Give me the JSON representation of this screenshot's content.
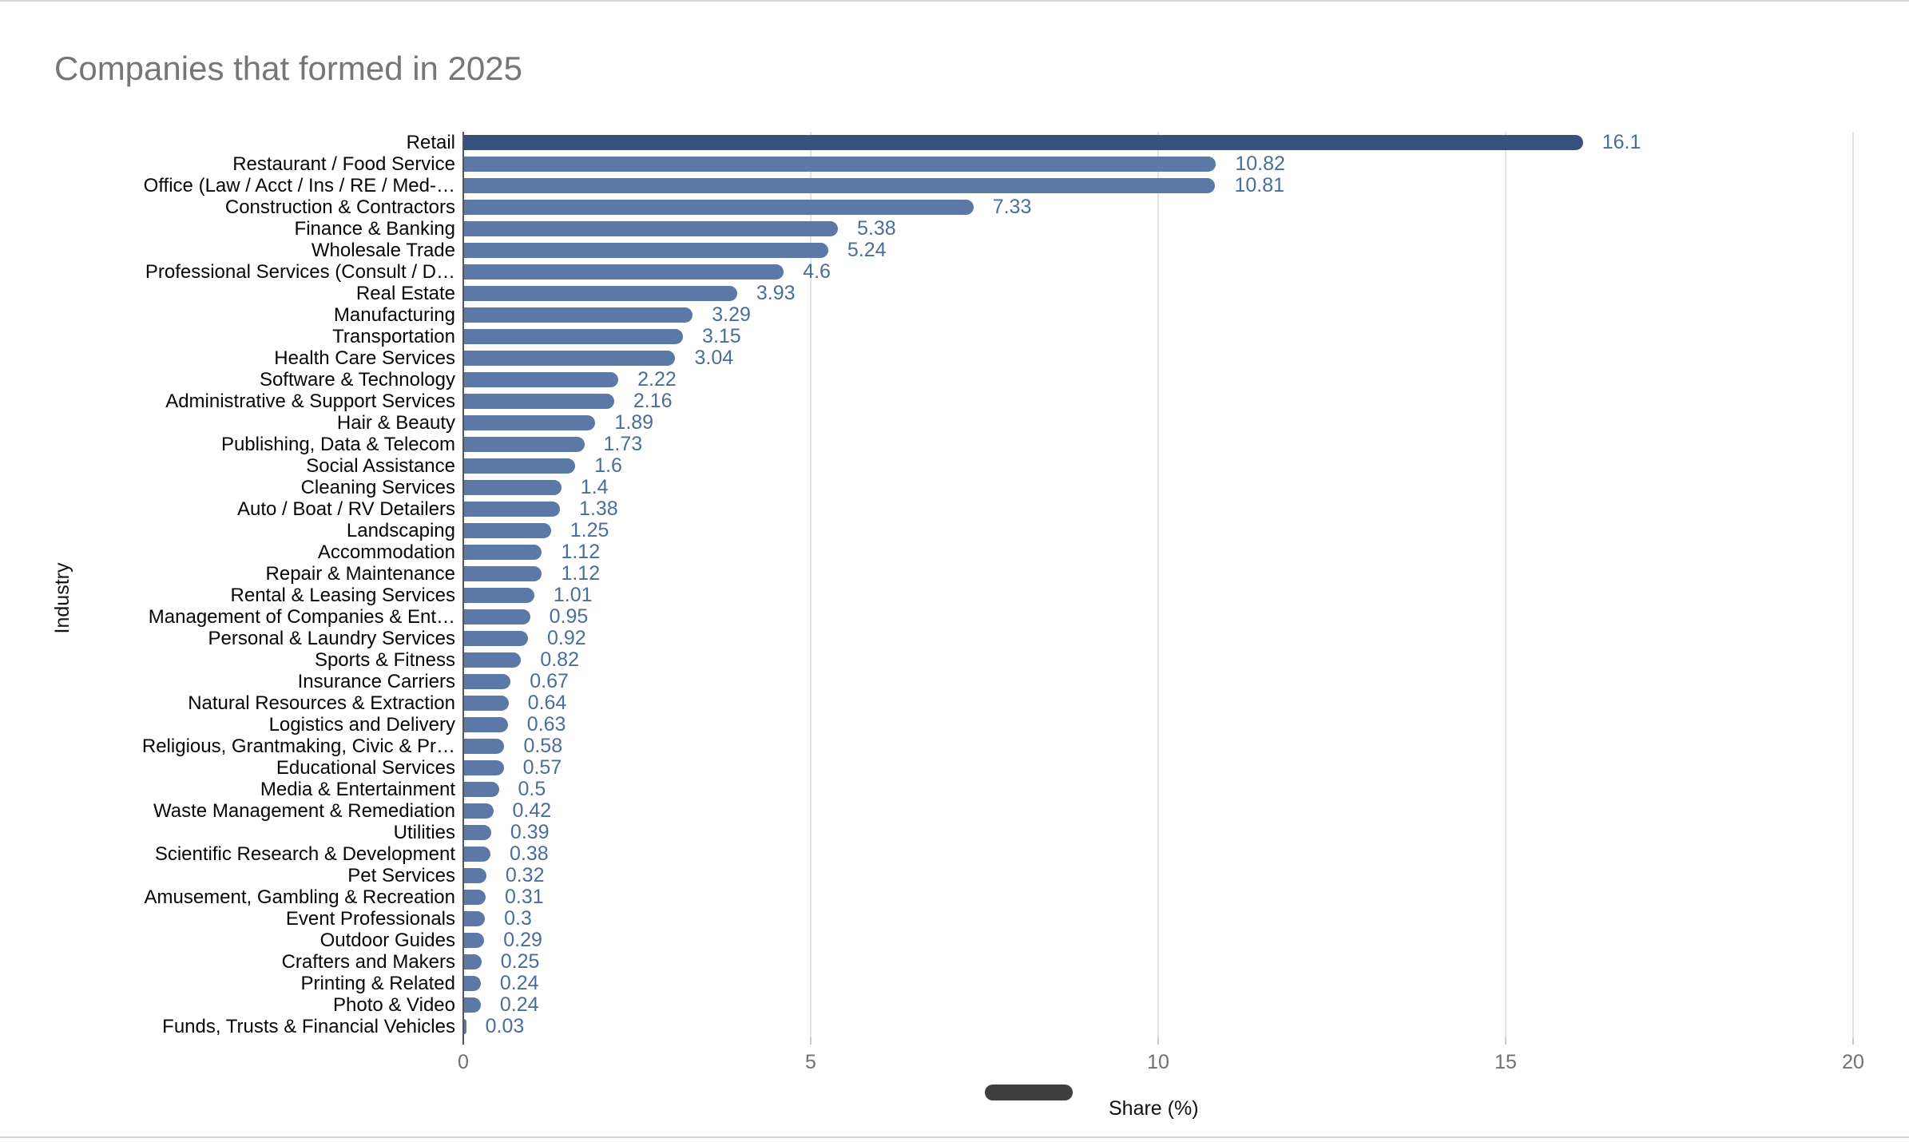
{
  "chart_data": {
    "type": "bar",
    "orientation": "horizontal",
    "title": "Companies that formed in 2025",
    "xlabel": "Share (%)",
    "ylabel": "Industry",
    "xlim": [
      0,
      20
    ],
    "x_ticks": [
      0,
      5,
      10,
      15,
      20
    ],
    "grid": true,
    "legend_position": "bottom",
    "categories": [
      "Retail",
      "Restaurant / Food Service",
      "Office (Law / Acct / Ins / RE / Med-…",
      "Construction & Contractors",
      "Finance & Banking",
      "Wholesale Trade",
      "Professional Services (Consult / D…",
      "Real Estate",
      "Manufacturing",
      "Transportation",
      "Health Care Services",
      "Software & Technology",
      "Administrative & Support Services",
      "Hair & Beauty",
      "Publishing, Data & Telecom",
      "Social Assistance",
      "Cleaning Services",
      "Auto / Boat / RV Detailers",
      "Landscaping",
      "Accommodation",
      "Repair & Maintenance",
      "Rental & Leasing Services",
      "Management of Companies & Ent…",
      "Personal & Laundry Services",
      "Sports & Fitness",
      "Insurance Carriers",
      "Natural Resources & Extraction",
      "Logistics and Delivery",
      "Religious, Grantmaking, Civic & Pr…",
      "Educational Services",
      "Media & Entertainment",
      "Waste Management & Remediation",
      "Utilities",
      "Scientific Research & Development",
      "Pet Services",
      "Amusement, Gambling & Recreation",
      "Event Professionals",
      "Outdoor Guides",
      "Crafters and Makers",
      "Printing & Related",
      "Photo & Video",
      "Funds, Trusts & Financial Vehicles"
    ],
    "values": [
      16.1,
      10.82,
      10.81,
      7.33,
      5.38,
      5.24,
      4.6,
      3.93,
      3.29,
      3.15,
      3.04,
      2.22,
      2.16,
      1.89,
      1.73,
      1.6,
      1.4,
      1.38,
      1.25,
      1.12,
      1.12,
      1.01,
      0.95,
      0.92,
      0.82,
      0.67,
      0.64,
      0.63,
      0.58,
      0.57,
      0.5,
      0.42,
      0.39,
      0.38,
      0.32,
      0.31,
      0.3,
      0.29,
      0.25,
      0.24,
      0.24,
      0.03
    ],
    "colors": {
      "bar": "#5c78a7",
      "first_bar": "#36517d",
      "value_label": "#4a6d9e",
      "title_text": "#767676",
      "gridline": "#e3e3e3",
      "legend_swatch": "#3e3e3e"
    }
  }
}
